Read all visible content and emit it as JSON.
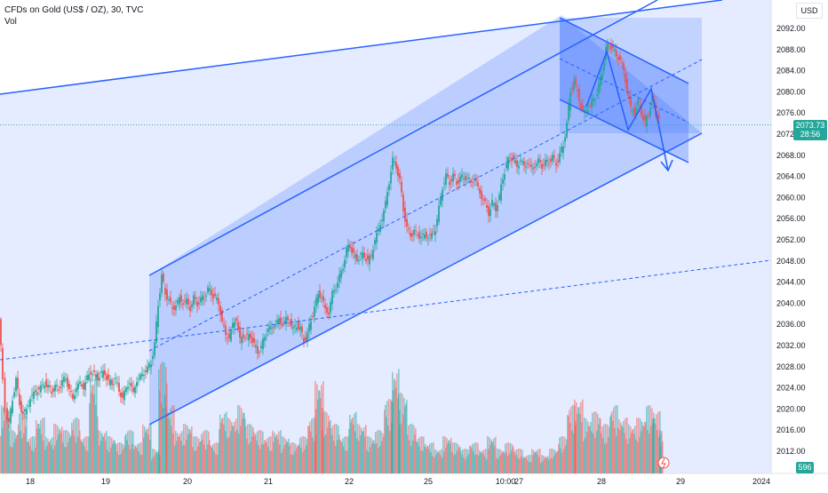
{
  "header": {
    "symbol_line": "CFDs on Gold (US$ / OZ), 30, TVC",
    "volume_label": "Vol"
  },
  "currency_button": "USD",
  "price_badge": {
    "price": "2073.73",
    "countdown": "28:56"
  },
  "volume_badge": "596",
  "colors": {
    "up": "#26a69a",
    "down": "#ef5350",
    "channel_fill": "#2962ff",
    "line": "#2962ff",
    "text": "#131722",
    "price_line": "#26a69a"
  },
  "chart_data": {
    "type": "candlestick",
    "yaxis": {
      "min": 2008,
      "max": 2096,
      "ticks": [
        "2092.00",
        "2088.00",
        "2084.00",
        "2080.00",
        "2076.00",
        "2072.00",
        "2068.00",
        "2064.00",
        "2060.00",
        "2056.00",
        "2052.00",
        "2048.00",
        "2044.00",
        "2040.00",
        "2036.00",
        "2032.00",
        "2028.00",
        "2024.00",
        "2020.00",
        "2016.00",
        "2012.00"
      ]
    },
    "xaxis": {
      "labels": [
        "18",
        "19",
        "20",
        "21",
        "22",
        "25",
        "10:00",
        "27",
        "28",
        "29",
        "2024"
      ]
    },
    "current_price": 2073.73,
    "price_path": [
      [
        0,
        2037.0
      ],
      [
        4,
        2026.0
      ],
      [
        7,
        2020.0
      ],
      [
        11,
        2017.0
      ],
      [
        15,
        2022.0
      ],
      [
        19,
        2025.5
      ],
      [
        23,
        2021.0
      ],
      [
        27,
        2019.0
      ],
      [
        31,
        2020.0
      ],
      [
        35,
        2022.0
      ],
      [
        39,
        2023.0
      ],
      [
        43,
        2023.5
      ],
      [
        47,
        2024.0
      ],
      [
        51,
        2025.0
      ],
      [
        55,
        2024.0
      ],
      [
        59,
        2023.5
      ],
      [
        63,
        2024.0
      ],
      [
        67,
        2024.0
      ],
      [
        71,
        2025.0
      ],
      [
        75,
        2026.0
      ],
      [
        79,
        2023.5
      ],
      [
        83,
        2022.0
      ],
      [
        87,
        2024.0
      ],
      [
        91,
        2025.0
      ],
      [
        95,
        2024.0
      ],
      [
        99,
        2026.0
      ],
      [
        103,
        2027.0
      ],
      [
        107,
        2026.5
      ],
      [
        111,
        2026.0
      ],
      [
        115,
        2026.5
      ],
      [
        119,
        2027.0
      ],
      [
        123,
        2025.0
      ],
      [
        127,
        2025.0
      ],
      [
        131,
        2025.5
      ],
      [
        135,
        2023.5
      ],
      [
        139,
        2022.0
      ],
      [
        143,
        2024.0
      ],
      [
        147,
        2025.0
      ],
      [
        151,
        2023.0
      ],
      [
        155,
        2025.5
      ],
      [
        159,
        2026.0
      ],
      [
        163,
        2027.0
      ],
      [
        167,
        2027.5
      ],
      [
        171,
        2029.0
      ],
      [
        175,
        2032.0
      ],
      [
        179,
        2040.0
      ],
      [
        183,
        2045.0
      ],
      [
        187,
        2042.0
      ],
      [
        191,
        2040.5
      ],
      [
        195,
        2039.0
      ],
      [
        199,
        2039.5
      ],
      [
        203,
        2041.0
      ],
      [
        207,
        2040.0
      ],
      [
        211,
        2040.5
      ],
      [
        215,
        2039.0
      ],
      [
        219,
        2041.0
      ],
      [
        223,
        2040.0
      ],
      [
        227,
        2040.5
      ],
      [
        231,
        2041.5
      ],
      [
        235,
        2042.5
      ],
      [
        239,
        2042.0
      ],
      [
        243,
        2041.0
      ],
      [
        247,
        2040.0
      ],
      [
        251,
        2036.5
      ],
      [
        255,
        2034.0
      ],
      [
        259,
        2033.5
      ],
      [
        263,
        2036.0
      ],
      [
        267,
        2037.0
      ],
      [
        271,
        2033.0
      ],
      [
        275,
        2034.0
      ],
      [
        279,
        2033.5
      ],
      [
        283,
        2034.0
      ],
      [
        287,
        2032.0
      ],
      [
        291,
        2031.0
      ],
      [
        295,
        2031.5
      ],
      [
        299,
        2034.0
      ],
      [
        303,
        2035.0
      ],
      [
        307,
        2035.5
      ],
      [
        311,
        2036.0
      ],
      [
        315,
        2037.0
      ],
      [
        319,
        2036.0
      ],
      [
        323,
        2037.0
      ],
      [
        327,
        2036.5
      ],
      [
        331,
        2035.0
      ],
      [
        335,
        2036.0
      ],
      [
        339,
        2035.0
      ],
      [
        343,
        2033.0
      ],
      [
        347,
        2034.0
      ],
      [
        351,
        2037.0
      ],
      [
        355,
        2039.0
      ],
      [
        359,
        2042.0
      ],
      [
        363,
        2041.0
      ],
      [
        367,
        2039.0
      ],
      [
        371,
        2038.0
      ],
      [
        375,
        2042.0
      ],
      [
        379,
        2043.0
      ],
      [
        383,
        2045.0
      ],
      [
        387,
        2047.0
      ],
      [
        391,
        2050.0
      ],
      [
        395,
        2051.0
      ],
      [
        399,
        2049.0
      ],
      [
        403,
        2048.5
      ],
      [
        407,
        2049.0
      ],
      [
        411,
        2049.0
      ],
      [
        415,
        2048.0
      ],
      [
        419,
        2049.0
      ],
      [
        423,
        2052.0
      ],
      [
        427,
        2054.0
      ],
      [
        431,
        2056.0
      ],
      [
        435,
        2059.0
      ],
      [
        439,
        2063.0
      ],
      [
        443,
        2067.0
      ],
      [
        447,
        2066.0
      ],
      [
        451,
        2063.0
      ],
      [
        455,
        2058.0
      ],
      [
        459,
        2054.0
      ],
      [
        463,
        2053.0
      ],
      [
        467,
        2053.5
      ],
      [
        471,
        2053.0
      ],
      [
        475,
        2052.5
      ],
      [
        479,
        2053.0
      ],
      [
        483,
        2052.5
      ],
      [
        487,
        2053.0
      ],
      [
        491,
        2054.0
      ],
      [
        495,
        2058.0
      ],
      [
        499,
        2062.0
      ],
      [
        503,
        2064.0
      ],
      [
        507,
        2063.0
      ],
      [
        511,
        2064.0
      ],
      [
        515,
        2063.0
      ],
      [
        519,
        2063.5
      ],
      [
        523,
        2064.0
      ],
      [
        527,
        2063.5
      ],
      [
        531,
        2063.0
      ],
      [
        535,
        2063.5
      ],
      [
        539,
        2062.0
      ],
      [
        543,
        2060.0
      ],
      [
        547,
        2059.0
      ],
      [
        551,
        2057.0
      ],
      [
        555,
        2059.0
      ],
      [
        559,
        2058.0
      ],
      [
        563,
        2060.0
      ],
      [
        567,
        2064.0
      ],
      [
        571,
        2066.0
      ],
      [
        575,
        2068.0
      ],
      [
        579,
        2067.0
      ],
      [
        583,
        2066.0
      ],
      [
        587,
        2067.0
      ],
      [
        591,
        2066.0
      ],
      [
        595,
        2066.5
      ],
      [
        599,
        2065.5
      ],
      [
        603,
        2066.0
      ],
      [
        607,
        2067.0
      ],
      [
        611,
        2066.0
      ],
      [
        615,
        2066.5
      ],
      [
        619,
        2067.0
      ],
      [
        623,
        2067.5
      ],
      [
        627,
        2066.5
      ],
      [
        631,
        2068.0
      ],
      [
        635,
        2070.0
      ],
      [
        639,
        2074.0
      ],
      [
        643,
        2080.0
      ],
      [
        647,
        2082.0
      ],
      [
        651,
        2080.0
      ],
      [
        655,
        2077.0
      ],
      [
        659,
        2076.0
      ],
      [
        663,
        2077.0
      ],
      [
        667,
        2078.0
      ],
      [
        671,
        2079.0
      ],
      [
        675,
        2081.0
      ],
      [
        679,
        2084.0
      ],
      [
        683,
        2088.0
      ],
      [
        687,
        2089.0
      ],
      [
        691,
        2088.0
      ],
      [
        695,
        2087.0
      ],
      [
        699,
        2086.0
      ],
      [
        703,
        2084.0
      ],
      [
        707,
        2080.0
      ],
      [
        711,
        2077.0
      ],
      [
        715,
        2076.0
      ],
      [
        719,
        2078.0
      ],
      [
        723,
        2076.0
      ],
      [
        727,
        2074.0
      ],
      [
        731,
        2076.0
      ],
      [
        735,
        2079.0
      ],
      [
        739,
        2076.0
      ],
      [
        743,
        2074.5
      ]
    ],
    "volumes": [
      [
        0,
        0.55
      ],
      [
        10,
        0.35
      ],
      [
        20,
        0.5
      ],
      [
        30,
        0.3
      ],
      [
        40,
        0.45
      ],
      [
        50,
        0.3
      ],
      [
        60,
        0.4
      ],
      [
        70,
        0.35
      ],
      [
        80,
        0.45
      ],
      [
        90,
        0.3
      ],
      [
        100,
        0.8
      ],
      [
        110,
        0.35
      ],
      [
        120,
        0.3
      ],
      [
        130,
        0.25
      ],
      [
        140,
        0.35
      ],
      [
        150,
        0.25
      ],
      [
        160,
        0.4
      ],
      [
        170,
        0.2
      ],
      [
        178,
        0.9
      ],
      [
        186,
        0.55
      ],
      [
        196,
        0.35
      ],
      [
        206,
        0.4
      ],
      [
        216,
        0.3
      ],
      [
        226,
        0.35
      ],
      [
        236,
        0.25
      ],
      [
        246,
        0.5
      ],
      [
        256,
        0.45
      ],
      [
        266,
        0.55
      ],
      [
        276,
        0.4
      ],
      [
        286,
        0.35
      ],
      [
        296,
        0.3
      ],
      [
        306,
        0.35
      ],
      [
        316,
        0.3
      ],
      [
        326,
        0.25
      ],
      [
        336,
        0.3
      ],
      [
        346,
        0.45
      ],
      [
        354,
        0.75
      ],
      [
        362,
        0.5
      ],
      [
        372,
        0.4
      ],
      [
        382,
        0.3
      ],
      [
        392,
        0.5
      ],
      [
        402,
        0.4
      ],
      [
        412,
        0.3
      ],
      [
        422,
        0.35
      ],
      [
        432,
        0.6
      ],
      [
        440,
        0.85
      ],
      [
        448,
        0.65
      ],
      [
        458,
        0.4
      ],
      [
        468,
        0.3
      ],
      [
        478,
        0.25
      ],
      [
        488,
        0.2
      ],
      [
        498,
        0.3
      ],
      [
        508,
        0.25
      ],
      [
        518,
        0.2
      ],
      [
        528,
        0.25
      ],
      [
        538,
        0.2
      ],
      [
        548,
        0.3
      ],
      [
        558,
        0.2
      ],
      [
        568,
        0.25
      ],
      [
        578,
        0.2
      ],
      [
        588,
        0.15
      ],
      [
        598,
        0.2
      ],
      [
        608,
        0.15
      ],
      [
        618,
        0.2
      ],
      [
        628,
        0.3
      ],
      [
        638,
        0.55
      ],
      [
        646,
        0.6
      ],
      [
        656,
        0.45
      ],
      [
        666,
        0.5
      ],
      [
        676,
        0.4
      ],
      [
        686,
        0.55
      ],
      [
        696,
        0.45
      ],
      [
        706,
        0.4
      ],
      [
        716,
        0.45
      ],
      [
        726,
        0.55
      ],
      [
        734,
        0.5
      ],
      [
        742,
        0.35
      ]
    ]
  }
}
